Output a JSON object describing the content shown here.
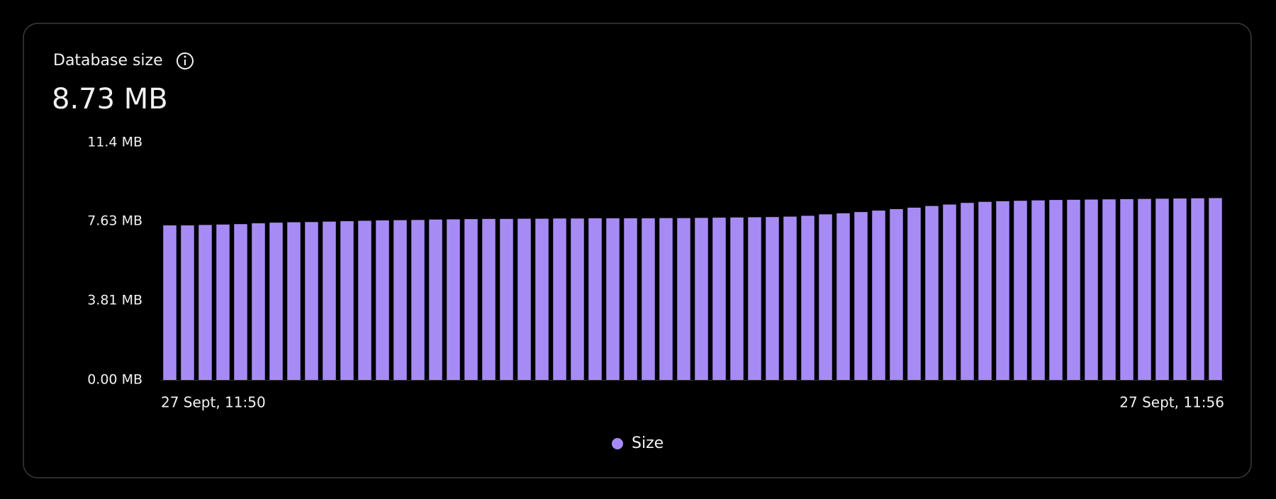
{
  "chart_data": {
    "type": "bar",
    "title": "Database size",
    "summary": "8.73 MB",
    "categories": [
      "27 Sept, 11:50",
      null,
      null,
      null,
      null,
      null,
      null,
      null,
      null,
      null,
      null,
      null,
      null,
      null,
      null,
      null,
      null,
      null,
      null,
      null,
      null,
      null,
      null,
      null,
      null,
      null,
      null,
      null,
      null,
      null,
      null,
      null,
      null,
      null,
      null,
      null,
      null,
      null,
      null,
      null,
      null,
      null,
      null,
      null,
      null,
      null,
      null,
      null,
      null,
      null,
      null,
      null,
      null,
      null,
      null,
      null,
      null,
      null,
      null,
      "27 Sept, 11:56"
    ],
    "series": [
      {
        "name": "Size",
        "color": "#a78bf5",
        "values": [
          7.42,
          7.42,
          7.44,
          7.46,
          7.48,
          7.52,
          7.55,
          7.57,
          7.58,
          7.6,
          7.62,
          7.64,
          7.66,
          7.67,
          7.68,
          7.7,
          7.71,
          7.72,
          7.73,
          7.73,
          7.74,
          7.74,
          7.75,
          7.75,
          7.76,
          7.76,
          7.76,
          7.76,
          7.77,
          7.77,
          7.78,
          7.79,
          7.8,
          7.81,
          7.82,
          7.84,
          7.88,
          7.95,
          8.0,
          8.06,
          8.13,
          8.2,
          8.27,
          8.35,
          8.42,
          8.5,
          8.55,
          8.58,
          8.6,
          8.62,
          8.64,
          8.65,
          8.66,
          8.67,
          8.68,
          8.69,
          8.7,
          8.71,
          8.72,
          8.73
        ]
      }
    ],
    "ylim": [
      0,
      11.4
    ],
    "yticks": [
      {
        "value": 0,
        "label": "0.00 MB"
      },
      {
        "value": 3.81,
        "label": "3.81 MB"
      },
      {
        "value": 7.63,
        "label": "7.63 MB"
      },
      {
        "value": 11.4,
        "label": "11.4 MB"
      }
    ],
    "legend": "bottom"
  }
}
